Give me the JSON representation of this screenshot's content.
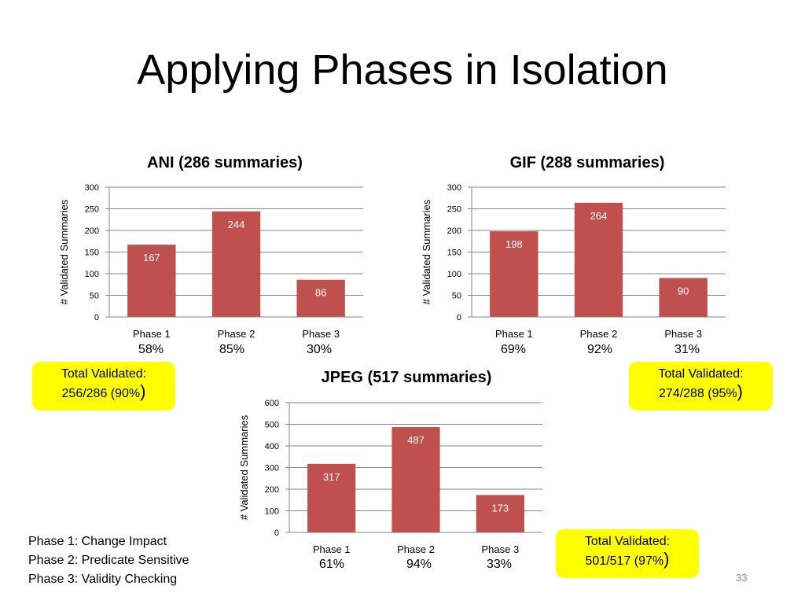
{
  "slide": {
    "title": "Applying Phases in Isolation",
    "number": "33"
  },
  "legend": [
    "Phase 1: Change Impact",
    "Phase 2: Predicate Sensitive",
    "Phase 3: Validity Checking"
  ],
  "totals": {
    "ani": {
      "line1": "Total Validated:",
      "line2": "256/286 (90%",
      "paren": ")"
    },
    "gif": {
      "line1": "Total Validated:",
      "line2": "274/288 (95%",
      "paren": ")"
    },
    "jpeg": {
      "line1": "Total Validated:",
      "line2": "501/517 (97%",
      "paren": ")"
    }
  },
  "colors": {
    "bar": "#c0504d",
    "grid": "#868686",
    "bar_label": "#ffffff"
  },
  "chart_data": [
    {
      "id": "ani",
      "type": "bar",
      "title": "ANI (286 summaries)",
      "ylabel": "# Validated Summaries",
      "categories": [
        "Phase 1",
        "Phase 2",
        "Phase 3"
      ],
      "values": [
        167,
        244,
        86
      ],
      "percentages": [
        "58%",
        "85%",
        "30%"
      ],
      "ylim": [
        0,
        300
      ],
      "yticks": [
        0,
        50,
        100,
        150,
        200,
        250,
        300
      ],
      "grid": true
    },
    {
      "id": "gif",
      "type": "bar",
      "title": "GIF (288 summaries)",
      "ylabel": "# Validated Summaries",
      "categories": [
        "Phase 1",
        "Phase 2",
        "Phase 3"
      ],
      "values": [
        198,
        264,
        90
      ],
      "percentages": [
        "69%",
        "92%",
        "31%"
      ],
      "ylim": [
        0,
        300
      ],
      "yticks": [
        0,
        50,
        100,
        150,
        200,
        250,
        300
      ],
      "grid": true
    },
    {
      "id": "jpeg",
      "type": "bar",
      "title": "JPEG (517 summaries)",
      "ylabel": "# Validated Summaries",
      "categories": [
        "Phase 1",
        "Phase 2",
        "Phase 3"
      ],
      "values": [
        317,
        487,
        173
      ],
      "percentages": [
        "61%",
        "94%",
        "33%"
      ],
      "ylim": [
        0,
        600
      ],
      "yticks": [
        0,
        100,
        200,
        300,
        400,
        500,
        600
      ],
      "grid": true
    }
  ]
}
